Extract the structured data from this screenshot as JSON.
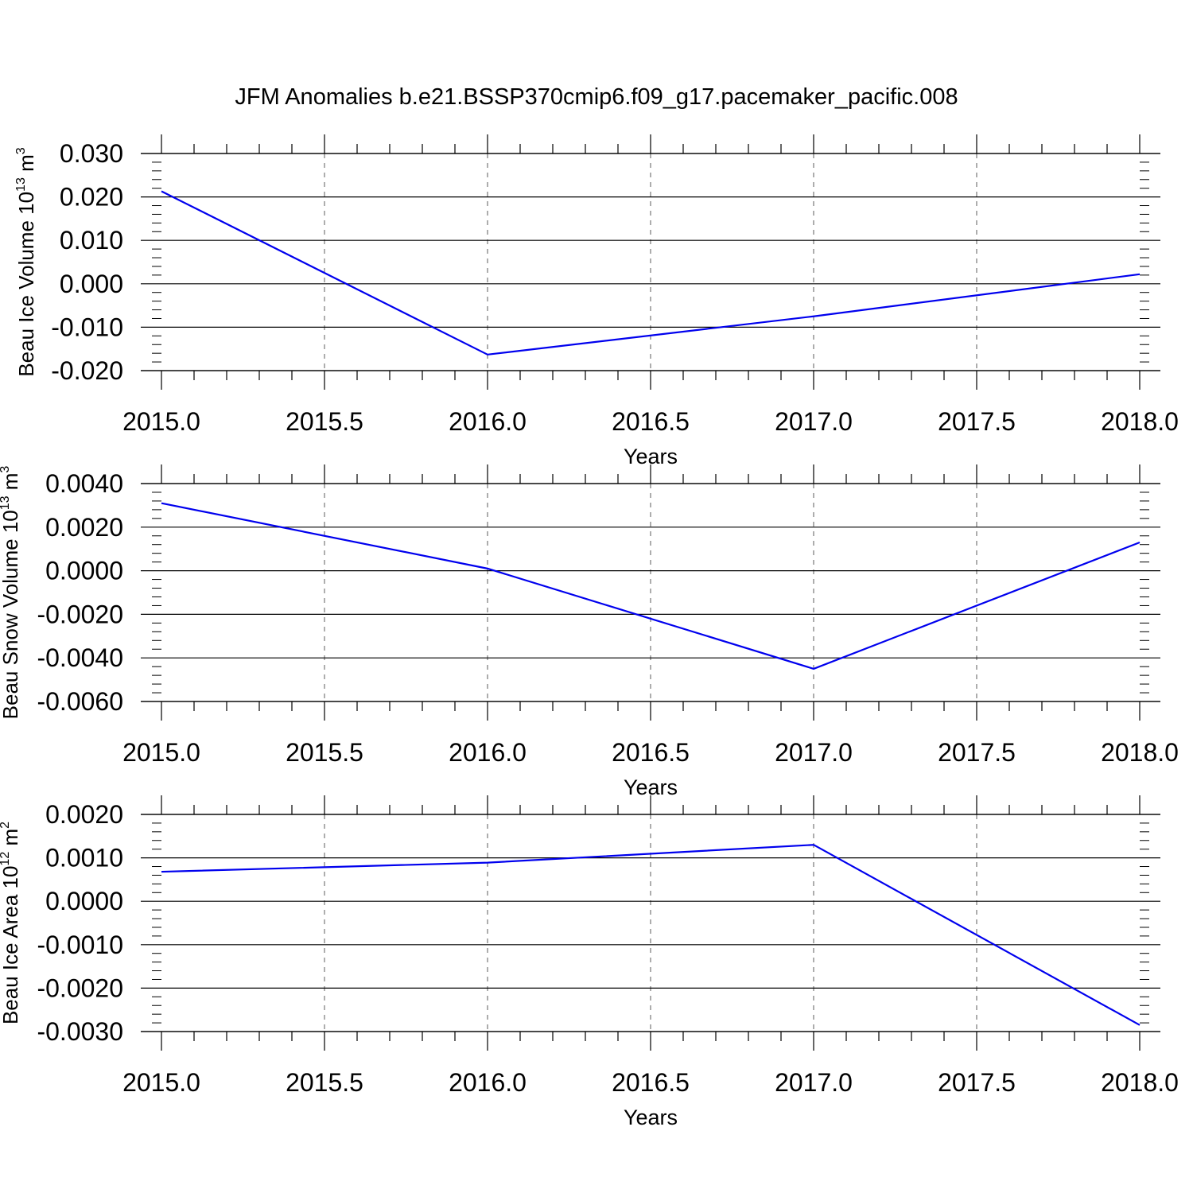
{
  "title": "JFM Anomalies b.e21.BSSP370cmip6.f09_g17.pacemaker_pacific.008",
  "chart_data": [
    {
      "type": "line",
      "xlabel": "Years",
      "ylabel": "Beau Ice Volume 10",
      "ylabel_exp": "13",
      "ylabel_unit": " m",
      "ylabel_unit_exp": "3",
      "xlim": [
        2015.0,
        2018.0
      ],
      "ylim": [
        -0.02,
        0.03
      ],
      "xticks": [
        "2015.0",
        "2015.5",
        "2016.0",
        "2016.5",
        "2017.0",
        "2017.5",
        "2018.0"
      ],
      "yticks": [
        "0.030",
        "0.020",
        "0.010",
        "0.000",
        "-0.010",
        "-0.020"
      ],
      "x": [
        2015,
        2016,
        2017,
        2018
      ],
      "values": [
        0.0213,
        -0.0163,
        -0.0075,
        0.0022
      ],
      "color": "#0000ee",
      "grid": "x-dashed"
    },
    {
      "type": "line",
      "xlabel": "Years",
      "ylabel": "Beau Snow Volume 10",
      "ylabel_exp": "13",
      "ylabel_unit": " m",
      "ylabel_unit_exp": "3",
      "xlim": [
        2015.0,
        2018.0
      ],
      "ylim": [
        -0.006,
        0.004
      ],
      "xticks": [
        "2015.0",
        "2015.5",
        "2016.0",
        "2016.5",
        "2017.0",
        "2017.5",
        "2018.0"
      ],
      "yticks": [
        "0.0040",
        "0.0020",
        "0.0000",
        "-0.0020",
        "-0.0040",
        "-0.0060"
      ],
      "x": [
        2015,
        2016,
        2017,
        2018
      ],
      "values": [
        0.0031,
        0.0001,
        -0.0045,
        0.0013
      ],
      "color": "#0000ee",
      "grid": "x-dashed"
    },
    {
      "type": "line",
      "xlabel": "Years",
      "ylabel": "Beau Ice Area 10",
      "ylabel_exp": "12",
      "ylabel_unit": " m",
      "ylabel_unit_exp": "2",
      "xlim": [
        2015.0,
        2018.0
      ],
      "ylim": [
        -0.003,
        0.002
      ],
      "xticks": [
        "2015.0",
        "2015.5",
        "2016.0",
        "2016.5",
        "2017.0",
        "2017.5",
        "2018.0"
      ],
      "yticks": [
        "0.0020",
        "0.0010",
        "0.0000",
        "-0.0010",
        "-0.0020",
        "-0.0030"
      ],
      "x": [
        2015,
        2016,
        2017,
        2018
      ],
      "values": [
        0.00068,
        0.00089,
        0.0013,
        -0.00285
      ],
      "color": "#0000ee",
      "grid": "x-dashed"
    }
  ]
}
